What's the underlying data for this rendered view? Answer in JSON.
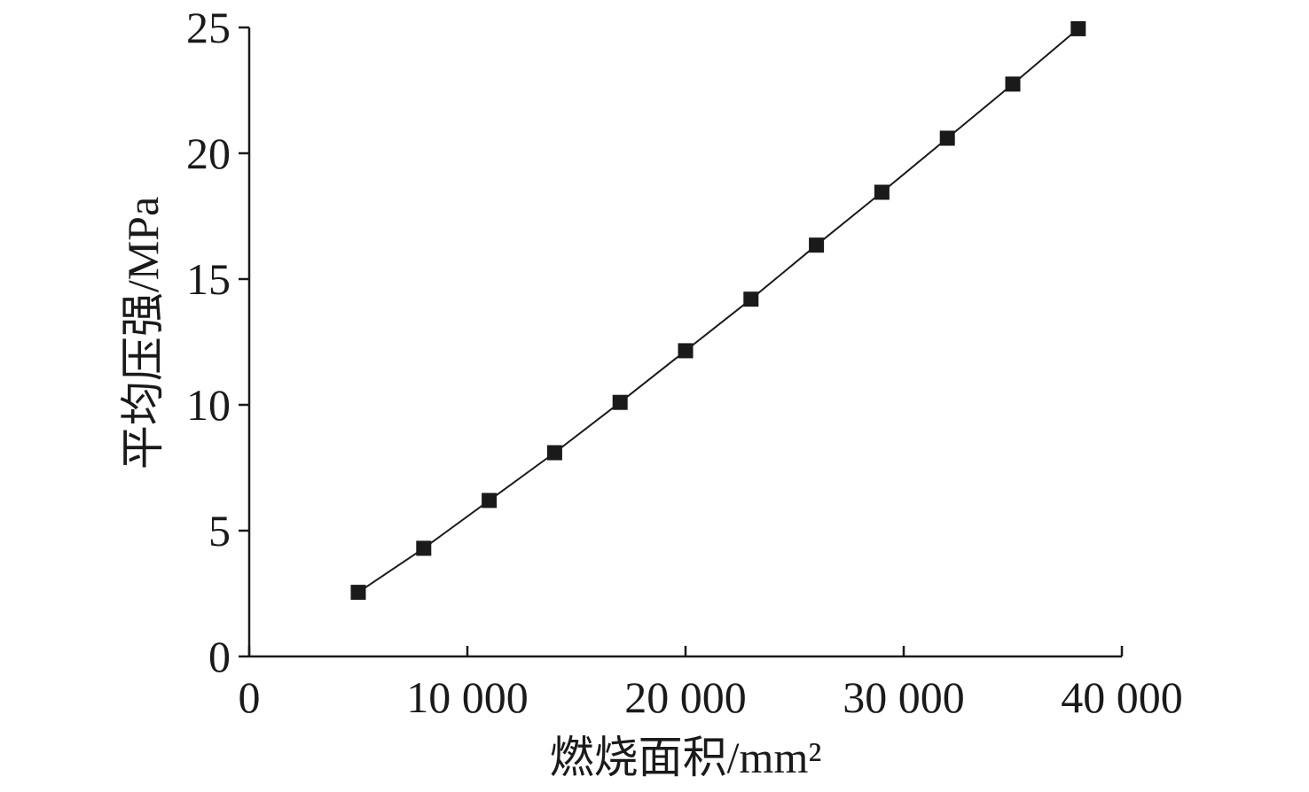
{
  "chart_data": {
    "type": "line",
    "title": "",
    "xlabel": "燃烧面积/mm²",
    "ylabel": "平均压强/MPa",
    "xlim": [
      0,
      40000
    ],
    "ylim": [
      0,
      25
    ],
    "xticks": [
      0,
      10000,
      20000,
      30000,
      40000
    ],
    "xtick_labels": [
      "0",
      "10 000",
      "20 000",
      "30 000",
      "40 000"
    ],
    "yticks": [
      0,
      5,
      10,
      15,
      20,
      25
    ],
    "ytick_labels": [
      "0",
      "5",
      "10",
      "15",
      "20",
      "25"
    ],
    "grid": false,
    "legend": "none",
    "series": [
      {
        "marker": "square",
        "color": "#1a1a1a",
        "x": [
          5000,
          8000,
          11000,
          14000,
          17000,
          20000,
          23000,
          26000,
          29000,
          32000,
          35000,
          38000
        ],
        "y": [
          2.55,
          4.3,
          6.2,
          8.1,
          10.1,
          12.15,
          14.2,
          16.35,
          18.45,
          20.6,
          22.75,
          24.95
        ]
      }
    ]
  }
}
